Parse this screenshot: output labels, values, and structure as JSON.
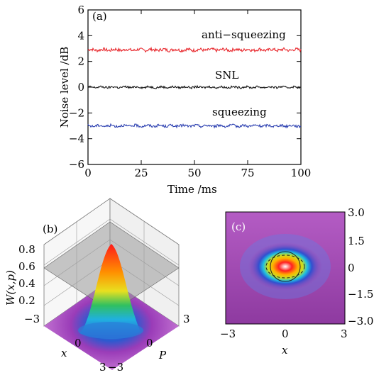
{
  "chart_data": [
    {
      "type": "line",
      "panel_label": "(a)",
      "xlabel": "Time /ms",
      "ylabel": "Noise level /dB",
      "xlim": [
        0,
        100
      ],
      "ylim": [
        -6,
        6
      ],
      "x_ticks": [
        0,
        25,
        50,
        75,
        100
      ],
      "y_ticks": [
        -6,
        -4,
        -2,
        0,
        2,
        4,
        6
      ],
      "x_tick_labels": [
        "0",
        "25",
        "50",
        "75",
        "100"
      ],
      "y_tick_labels": [
        "−6",
        "−4",
        "−2",
        "0",
        "2",
        "4",
        "6"
      ],
      "grid": false,
      "series": [
        {
          "name": "anti−squeezing",
          "mean": 2.9,
          "noise": 0.12,
          "color": "#e8262b"
        },
        {
          "name": "SNL",
          "mean": 0.0,
          "noise": 0.08,
          "color": "#111111"
        },
        {
          "name": "squeezing",
          "mean": -3.0,
          "noise": 0.1,
          "color": "#2b3fb0"
        }
      ]
    },
    {
      "type": "surface3d",
      "panel_label": "(b)",
      "zlabel": "W(x,p)",
      "xlabel": "x",
      "ylabel": "P",
      "z_tick_labels": [
        "0.2",
        "0.4",
        "0.6",
        "0.8"
      ],
      "x_tick_labels": [
        "−3",
        "0",
        "3"
      ],
      "p_tick_labels": [
        "−3",
        "0",
        "3"
      ],
      "zlim": [
        0,
        0.8
      ]
    },
    {
      "type": "heatmap",
      "panel_label": "(c)",
      "xlabel": "x",
      "x_tick_labels": [
        "−3",
        "0",
        "3"
      ],
      "y_tick_labels": [
        "3.0",
        "1.5",
        "0",
        "−1.5",
        "−3.0"
      ],
      "xlim": [
        -3,
        3
      ],
      "ylim": [
        -3,
        3
      ]
    }
  ]
}
